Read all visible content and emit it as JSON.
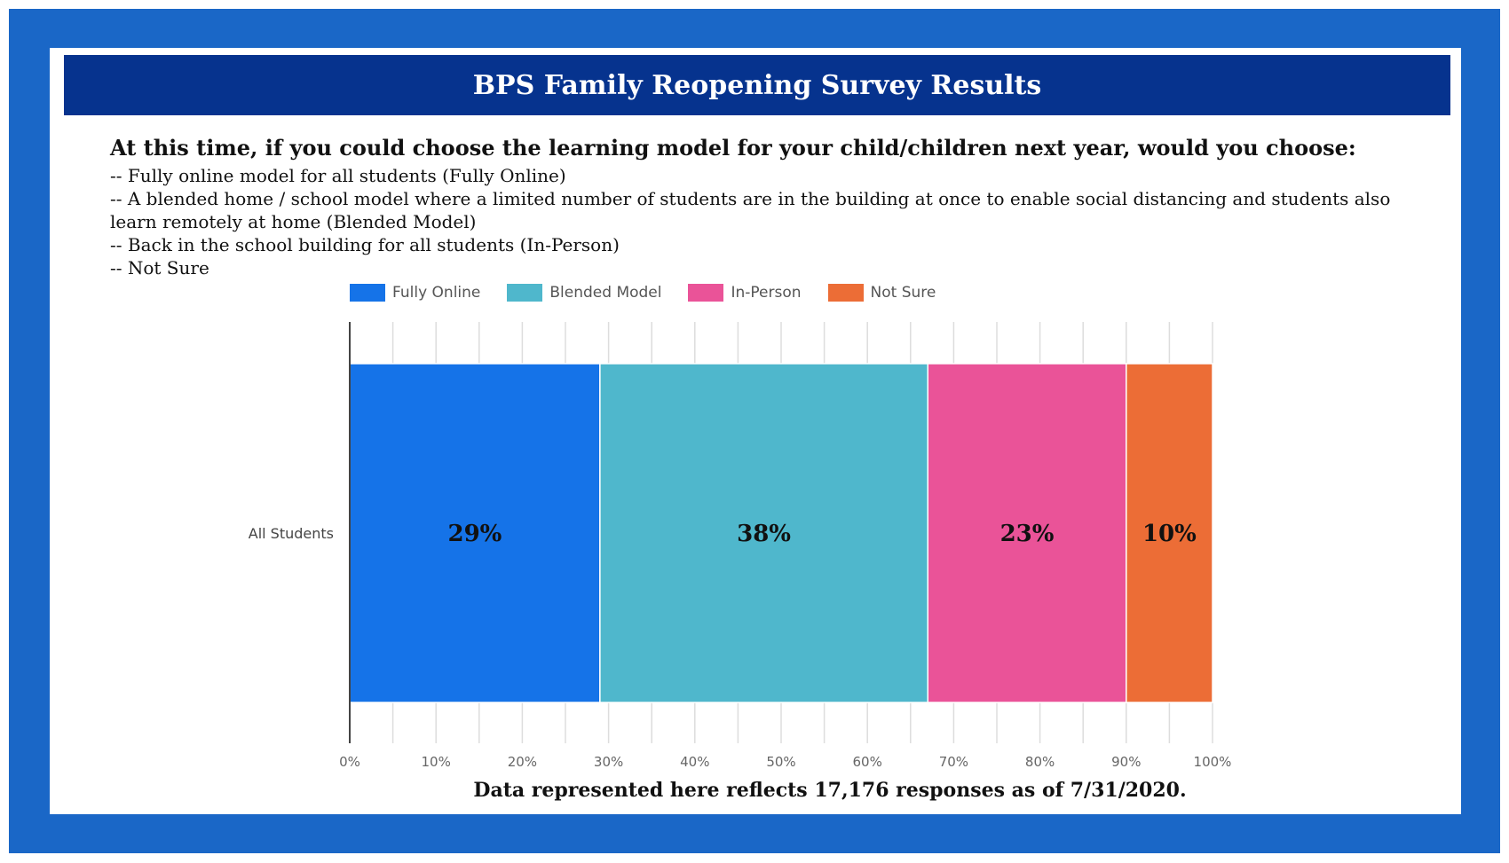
{
  "header": {
    "title": "BPS Family Reopening Survey Results"
  },
  "question": {
    "text": "At this time, if you could choose the learning model for your child/children next year, would you choose:",
    "options": [
      "-- Fully online model for all students (Fully Online)",
      "-- A blended home / school model where a limited number of students are in the building at once to enable social distancing and students also learn remotely at home (Blended Model)",
      "-- Back in the school building for all students (In-Person)",
      "-- Not Sure"
    ]
  },
  "chart_data": {
    "type": "bar",
    "orientation": "horizontal",
    "stacked": true,
    "normalized_percent": true,
    "categories": [
      "All Students"
    ],
    "series": [
      {
        "name": "Fully Online",
        "values": [
          29
        ],
        "label": "29%",
        "color": "#1573e8"
      },
      {
        "name": "Blended Model",
        "values": [
          38
        ],
        "label": "38%",
        "color": "#4fb7cc"
      },
      {
        "name": "In-Person",
        "values": [
          23
        ],
        "label": "23%",
        "color": "#ea5398"
      },
      {
        "name": "Not Sure",
        "values": [
          10
        ],
        "label": "10%",
        "color": "#ec6d36"
      }
    ],
    "xticks": [
      "0%",
      "10%",
      "20%",
      "30%",
      "40%",
      "50%",
      "60%",
      "70%",
      "80%",
      "90%",
      "100%"
    ],
    "xlim": [
      0,
      100
    ],
    "grid": true,
    "legend": "top"
  },
  "footer": {
    "note": "Data represented here reflects 17,176 responses as of 7/31/2020."
  },
  "colors": {
    "frame": "#1a67c7",
    "banner": "#06338e"
  }
}
